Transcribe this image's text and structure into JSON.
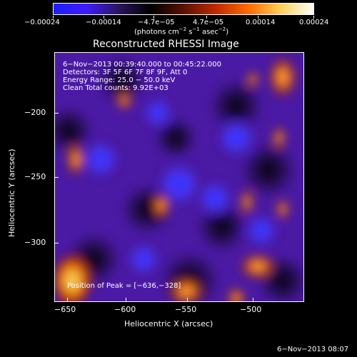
{
  "colorbar": {
    "ticks": [
      "−0.00024",
      "−0.00014",
      "−4.7e−05",
      "4.7e−05",
      "0.00014",
      "0.00024"
    ],
    "units_main": "(photons cm",
    "units_sup1": "−2",
    "units_mid": " s",
    "units_sup2": "−1",
    "units_mid2": " asec",
    "units_sup3": "−2",
    "units_end": ")",
    "colors": [
      "#1e1eff",
      "#3f1cff",
      "#2b155f",
      "#000000",
      "#5a1200",
      "#c02a00",
      "#ff6a00",
      "#ffd15a",
      "#ffffff"
    ]
  },
  "plot": {
    "title": "Reconstructed RHESSI Image",
    "info": [
      "6−Nov−2013 00:39:40.000 to 00:45:22.000",
      "Detectors: 3F 5F 6F 7F 8F 9F, Att 0",
      "Energy Range: 25.0 − 50.0 keV",
      "Clean     Total counts: 9.92E+03"
    ],
    "peak_text": "Position of Peak = [−636,−328]",
    "xlabel": "Heliocentric X (arcsec)",
    "ylabel": "Heliocentric Y (arcsec)",
    "xticks": [
      "−650",
      "−600",
      "−550",
      "−500"
    ],
    "yticks": [
      "−200",
      "−250",
      "−300"
    ]
  },
  "footer": {
    "timestamp": "6−Nov−2013 08:07"
  }
}
